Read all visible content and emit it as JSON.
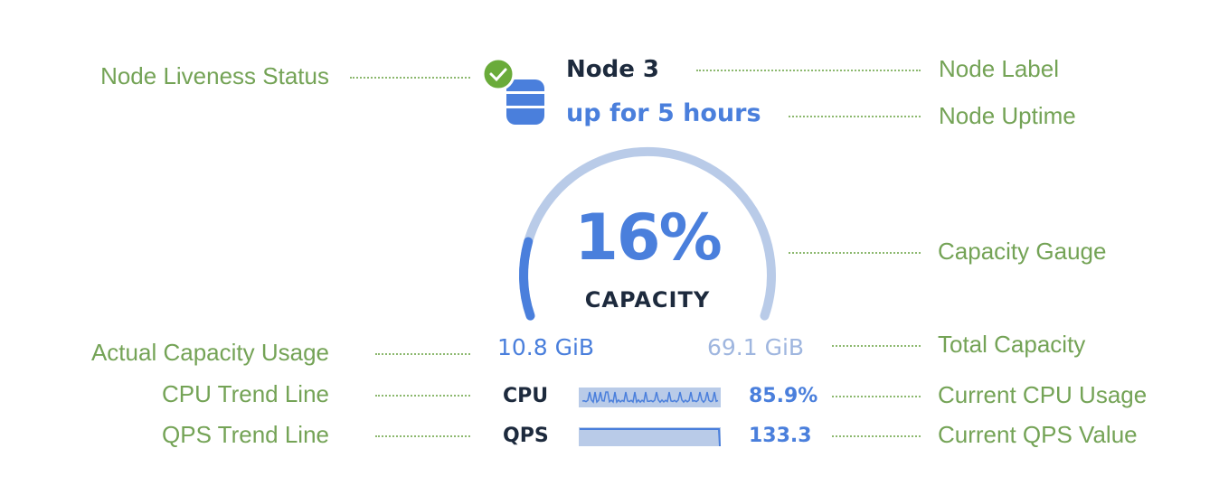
{
  "node": {
    "title": "Node 3",
    "uptime": "up for 5 hours",
    "liveness": "live",
    "icons": {
      "status": "check-circle-icon",
      "node": "database-icon"
    }
  },
  "gauge": {
    "percent_label": "16%",
    "percent_value": 16,
    "caption": "CAPACITY",
    "used": "10.8 GiB",
    "total": "69.1 GiB"
  },
  "metrics": [
    {
      "name": "CPU",
      "value": "85.9%"
    },
    {
      "name": "QPS",
      "value": "133.3"
    }
  ],
  "annotations": {
    "liveness": "Node Liveness Status",
    "actual_usage": "Actual Capacity Usage",
    "cpu_trend": "CPU Trend Line",
    "qps_trend": "QPS Trend Line",
    "node_label": "Node Label",
    "node_uptime": "Node Uptime",
    "capacity_gauge": "Capacity Gauge",
    "total_capacity": "Total Capacity",
    "current_cpu": "Current CPU Usage",
    "current_qps": "Current QPS Value"
  },
  "colors": {
    "annotation": "#74a356",
    "accent": "#4a7fdc",
    "track": "#b9cbe8",
    "status_ok": "#6aab3a",
    "text_dark": "#1d2a3d"
  }
}
